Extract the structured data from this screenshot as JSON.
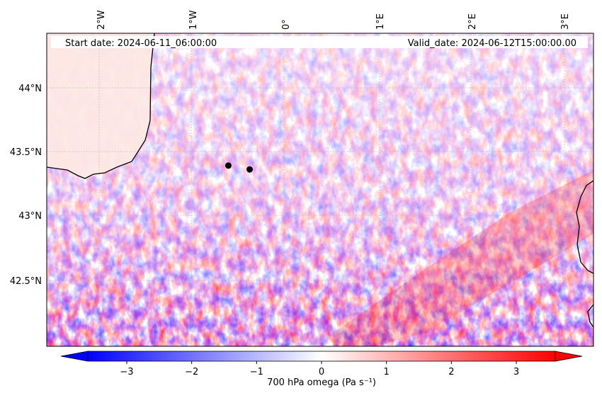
{
  "map": {
    "start_label": "Start date: 2024-06-11_06:00:00",
    "valid_label": "Valid_date: 2024-06-12T15:00:00.00",
    "lon_ticks": [
      "2°W",
      "1°W",
      "0°",
      "1°E",
      "2°E",
      "3°E"
    ],
    "lat_ticks": [
      "44°N",
      "43.5°N",
      "43°N",
      "42.5°N"
    ],
    "markers": [
      {
        "lon": -0.6,
        "lat": 43.39
      },
      {
        "lon": -0.37,
        "lat": 43.36
      }
    ],
    "colorbar": {
      "label": "700 hPa omega (Pa s⁻¹)",
      "ticks": [
        "−3",
        "−2",
        "−1",
        "0",
        "1",
        "2",
        "3"
      ],
      "min": -3.6,
      "max": 3.6,
      "colors": [
        "#0000ff",
        "#ffffff",
        "#ff0000"
      ]
    }
  }
}
